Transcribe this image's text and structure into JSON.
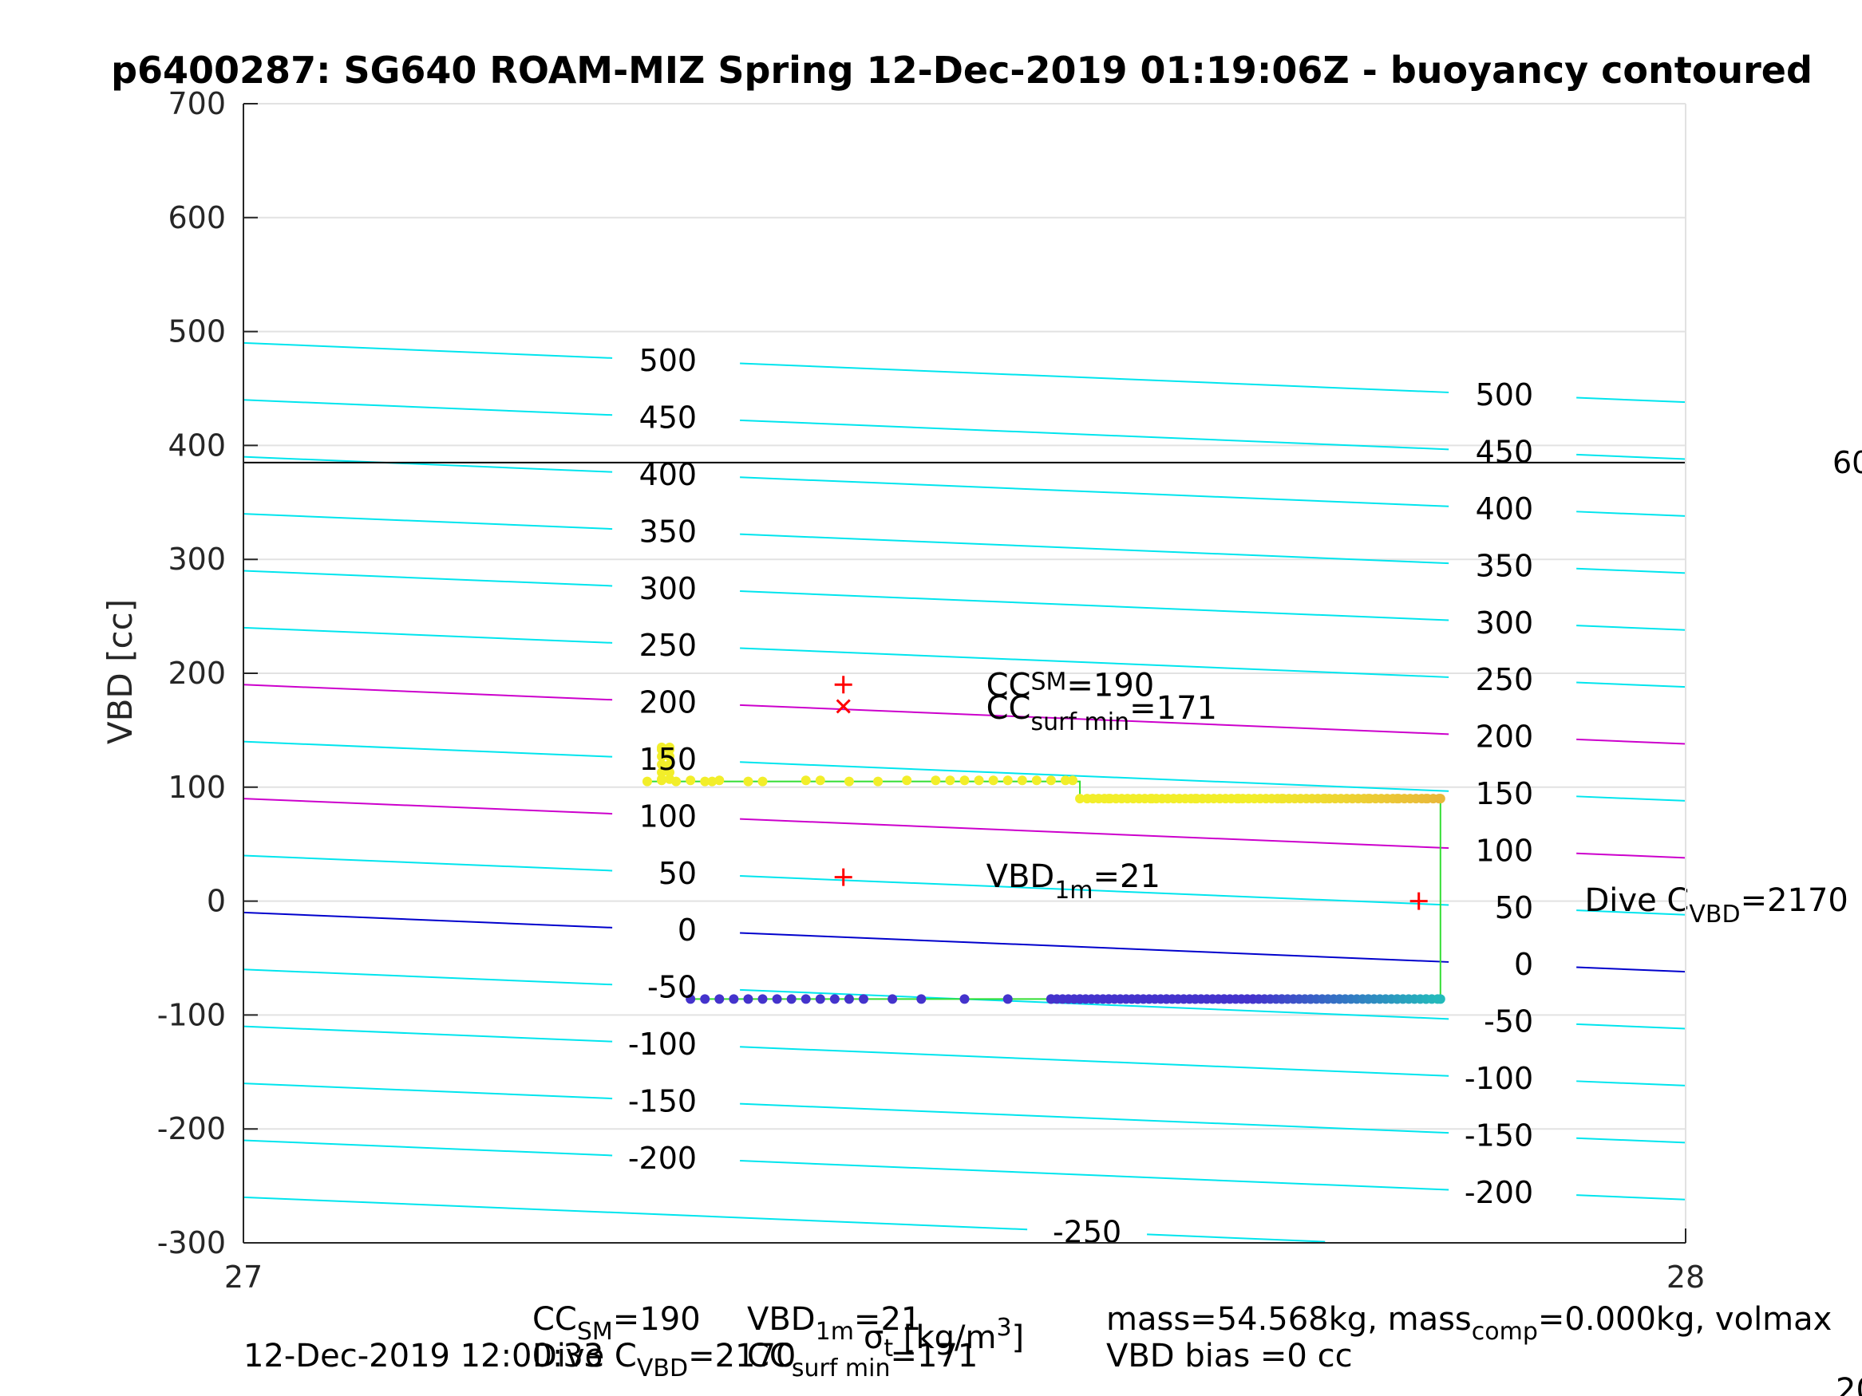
{
  "chart_data": {
    "type": "scatter",
    "title": "p6400287: SG640 ROAM-MIZ Spring 12-Dec-2019 01:19:06Z - buoyancy contoured",
    "xlabel": "σ_t [kg/m^3]",
    "ylabel": "VBD [cc]",
    "xlim": [
      27,
      28
    ],
    "ylim": [
      -300,
      700
    ],
    "x_ticks": [
      "27",
      "28"
    ],
    "y_ticks": [
      "-300",
      "-200",
      "-100",
      "0",
      "100",
      "200",
      "300",
      "400",
      "500",
      "600",
      "700"
    ],
    "grid": true,
    "colors": {
      "contour": "#00e5ee",
      "contour_highlight": "#cc00cc",
      "zero_contour": "#0000cc",
      "reference_line": "#000000",
      "track": "#33dd33",
      "marker": "#ff0000",
      "points_top": "#f2ee2a",
      "points_top_end": "#e8b83a",
      "points_bottom": "#4433cc",
      "points_bottom_end": "#22bbbb"
    },
    "contours": [
      {
        "label": "500",
        "left_label": "500",
        "right_label": "500",
        "y0": 490,
        "y1": 438,
        "color": "contour"
      },
      {
        "label": "450",
        "left_label": "450",
        "right_label": "450",
        "y0": 440,
        "y1": 388,
        "color": "contour"
      },
      {
        "label": "400",
        "left_label": "400",
        "right_label": "400",
        "y0": 390,
        "y1": 338,
        "color": "contour"
      },
      {
        "label": "350",
        "left_label": "350",
        "right_label": "350",
        "y0": 340,
        "y1": 288,
        "color": "contour"
      },
      {
        "label": "300",
        "left_label": "300",
        "right_label": "300",
        "y0": 290,
        "y1": 238,
        "color": "contour"
      },
      {
        "label": "250",
        "left_label": "250",
        "right_label": "250",
        "y0": 240,
        "y1": 188,
        "color": "contour"
      },
      {
        "label": "200",
        "left_label": "200",
        "right_label": "200",
        "y0": 190,
        "y1": 138,
        "color": "contour_highlight"
      },
      {
        "label": "150",
        "left_label": "150",
        "right_label": "150",
        "y0": 140,
        "y1": 88,
        "color": "contour"
      },
      {
        "label": "100",
        "left_label": "100",
        "right_label": "100",
        "y0": 90,
        "y1": 38,
        "color": "contour_highlight"
      },
      {
        "label": "50",
        "left_label": "50",
        "right_label": "50",
        "y0": 40,
        "y1": -12,
        "color": "contour"
      },
      {
        "label": "0",
        "left_label": "0",
        "right_label": "0",
        "y0": -10,
        "y1": -62,
        "color": "zero_contour"
      },
      {
        "label": "-50",
        "left_label": "-50",
        "right_label": "-50",
        "y0": -60,
        "y1": -112,
        "color": "contour"
      },
      {
        "label": "-100",
        "left_label": "-100",
        "right_label": "-100",
        "y0": -110,
        "y1": -162,
        "color": "contour"
      },
      {
        "label": "-150",
        "left_label": "-150",
        "right_label": "-150",
        "y0": -160,
        "y1": -212,
        "color": "contour"
      },
      {
        "label": "-200",
        "left_label": "-200",
        "right_label": "-200",
        "y0": -210,
        "y1": -262,
        "color": "contour"
      },
      {
        "label": "-250",
        "left_label": "",
        "right_label": "",
        "mid_label": "-250",
        "y0": -260,
        "y1": -312,
        "color": "contour"
      }
    ],
    "reference_line": {
      "y": 385,
      "right_text": "60"
    },
    "track": {
      "top_y": 105,
      "top_step_x": 27.58,
      "top_y2": 90,
      "x_start": 27.28,
      "x_end": 27.83,
      "bottom_y": -86,
      "bottom_x_start": 27.31
    },
    "series": [
      {
        "name": "",
        "color": "points_top",
        "x": [
          27.28,
          27.29,
          27.3,
          27.31,
          27.32,
          27.325,
          27.33,
          27.35,
          27.36,
          27.39,
          27.4,
          27.42,
          27.44,
          27.46,
          27.48,
          27.49,
          27.5,
          27.51,
          27.52,
          27.53,
          27.54,
          27.55,
          27.56,
          27.57,
          27.575,
          27.58,
          27.6,
          27.63,
          27.66,
          27.69,
          27.72,
          27.75,
          27.78,
          27.8,
          27.82,
          27.83
        ],
        "y": [
          105,
          106,
          105,
          106,
          105,
          105,
          106,
          105,
          105,
          106,
          106,
          105,
          105,
          106,
          106,
          106,
          106,
          106,
          106,
          106,
          106,
          106,
          106,
          106,
          106,
          90,
          90,
          90,
          90,
          90,
          90,
          90,
          90,
          90,
          90,
          90
        ],
        "vertical_cluster": {
          "x": 27.29,
          "y": [
            107,
            113,
            120,
            127,
            133,
            135
          ]
        }
      },
      {
        "name": "",
        "color": "points_bottom",
        "x": [
          27.31,
          27.32,
          27.33,
          27.34,
          27.35,
          27.36,
          27.37,
          27.38,
          27.39,
          27.4,
          27.41,
          27.42,
          27.43,
          27.45,
          27.47,
          27.5,
          27.53,
          27.56,
          27.58,
          27.6,
          27.62,
          27.64,
          27.66,
          27.68,
          27.7,
          27.72,
          27.74,
          27.76,
          27.78,
          27.8,
          27.82,
          27.83
        ],
        "y": [
          -86,
          -86,
          -86,
          -86,
          -86,
          -86,
          -86,
          -86,
          -86,
          -86,
          -86,
          -86,
          -86,
          -86,
          -86,
          -86,
          -86,
          -86,
          -86,
          -86,
          -86,
          -86,
          -86,
          -86,
          -86,
          -86,
          -86,
          -86,
          -86,
          -86,
          -86,
          -86
        ]
      }
    ],
    "markers": [
      {
        "symbol": "+",
        "x": 27.416,
        "y": 190
      },
      {
        "symbol": "x",
        "x": 27.416,
        "y": 171
      },
      {
        "symbol": "+",
        "x": 27.416,
        "y": 21
      },
      {
        "symbol": "+",
        "x": 27.815,
        "y": 0
      }
    ],
    "annotations": [
      {
        "main": "CC",
        "sub": "SM",
        "sub_pos": "sup",
        "tail": "=190",
        "x": 27.515,
        "y": 190
      },
      {
        "main": "CC",
        "sub": "surf min",
        "sub_pos": "sub",
        "tail": "=171",
        "x": 27.515,
        "y": 170
      },
      {
        "main": "VBD",
        "sub": "1m",
        "sub_pos": "sub",
        "tail": "=21",
        "x": 27.515,
        "y": 22
      },
      {
        "main": "Dive C",
        "sub": "VBD",
        "sub_pos": "sub",
        "tail": "=2170",
        "x": 27.93,
        "y": 1
      }
    ]
  },
  "footer": {
    "line1_a": "CC",
    "line1_a_sub": "SM",
    "line1_a_tail": "=190",
    "line1_b": "VBD",
    "line1_b_sub": "1m",
    "line1_b_tail": "=21",
    "line1_c": "mass=54.568kg, mass",
    "line1_c_sub": "comp",
    "line1_c_tail": "=0.000kg, volmax",
    "line2_a": "Dive C",
    "line2_a_sub": "VBD",
    "line2_a_tail": "=2170",
    "line2_b": "CC",
    "line2_b_sub": "surf min",
    "line2_b_tail": "=171",
    "line2_c": "VBD bias =0 cc",
    "timestamp": "12-Dec-2019 12:00:33",
    "corner_fragment": "20"
  }
}
